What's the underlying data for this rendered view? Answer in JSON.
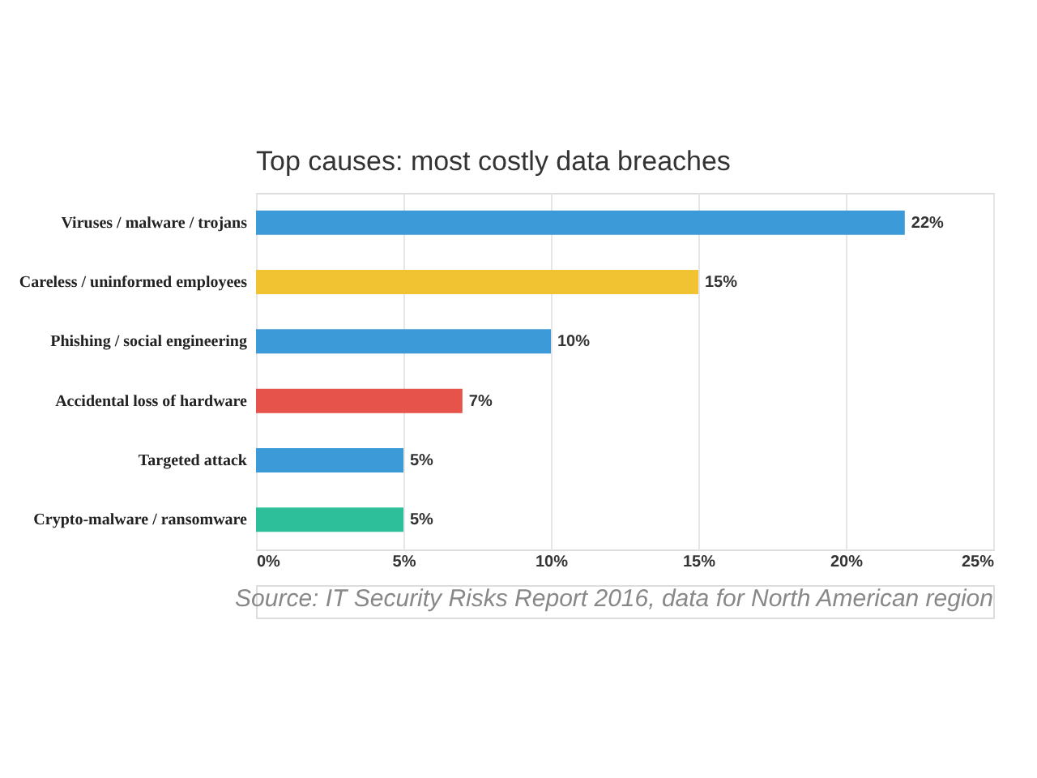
{
  "chart_data": {
    "type": "bar",
    "orientation": "horizontal",
    "title": "Top causes: most costly data breaches",
    "categories": [
      "Viruses / malware / trojans",
      "Careless / uninformed employees",
      "Phishing / social engineering",
      "Accidental loss of hardware",
      "Targeted attack",
      "Crypto-malware / ransomware"
    ],
    "values": [
      22,
      15,
      10,
      7,
      5,
      5
    ],
    "colors": [
      "#3d9ad8",
      "#f1c232",
      "#3d9ad8",
      "#e5534b",
      "#3d9ad8",
      "#2dbf99"
    ],
    "value_labels": [
      "22%",
      "15%",
      "10%",
      "7%",
      "5%",
      "5%"
    ],
    "xlim": [
      0,
      25
    ],
    "xticks": [
      {
        "value": 0,
        "label": "0%"
      },
      {
        "value": 5,
        "label": "5%"
      },
      {
        "value": 10,
        "label": "10%"
      },
      {
        "value": 15,
        "label": "15%"
      },
      {
        "value": 20,
        "label": "20%"
      },
      {
        "value": 25,
        "label": "25%"
      }
    ],
    "grid": "x",
    "annotations": [
      "Source: IT Security Risks Report 2016, data for North American region"
    ]
  }
}
